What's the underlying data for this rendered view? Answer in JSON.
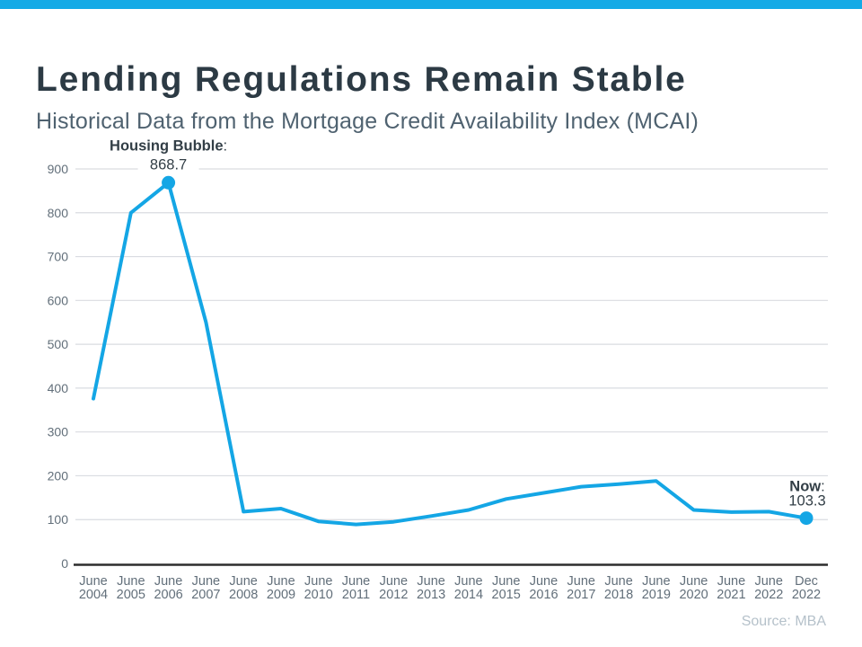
{
  "header": {
    "title": "Lending Regulations Remain Stable",
    "subtitle": "Historical Data from the Mortgage Credit Availability Index (MCAI)"
  },
  "footer": {
    "source": "Source: MBA"
  },
  "colors": {
    "accent_bar": "#14aae6",
    "line": "#14a6e5",
    "title": "#2c3a44",
    "subtitle": "#4f6270",
    "axis_label": "#626f7a",
    "gridline": "#d9dce1",
    "axis_line": "#2d2d2d",
    "annotation": "#323e46",
    "source": "#b5c1ca"
  },
  "chart_data": {
    "type": "line",
    "title": "Mortgage Credit Availability Index (MCAI)",
    "categories": [
      "June 2004",
      "June 2005",
      "June 2006",
      "June 2007",
      "June 2008",
      "June 2009",
      "June 2010",
      "June 2011",
      "June 2012",
      "June 2013",
      "June 2014",
      "June 2015",
      "June 2016",
      "June 2017",
      "June 2018",
      "June 2019",
      "June 2020",
      "June 2021",
      "June 2022",
      "Dec 2022"
    ],
    "values": [
      376,
      800,
      868.7,
      550,
      118,
      125,
      96,
      89,
      95,
      108,
      122,
      147,
      161,
      175,
      181,
      188,
      122,
      117,
      118,
      103.3
    ],
    "xlabel": "",
    "ylabel": "",
    "ylim": [
      0,
      900
    ],
    "ytick_step": 100,
    "grid": "horizontal",
    "legend": "none",
    "marker_indices": [
      2,
      19
    ],
    "annotations": [
      {
        "index": 2,
        "label": "Housing Bubble",
        "separator": ":",
        "value": "868.7"
      },
      {
        "index": 19,
        "label": "Now",
        "separator": ":",
        "value": "103.3"
      }
    ]
  }
}
